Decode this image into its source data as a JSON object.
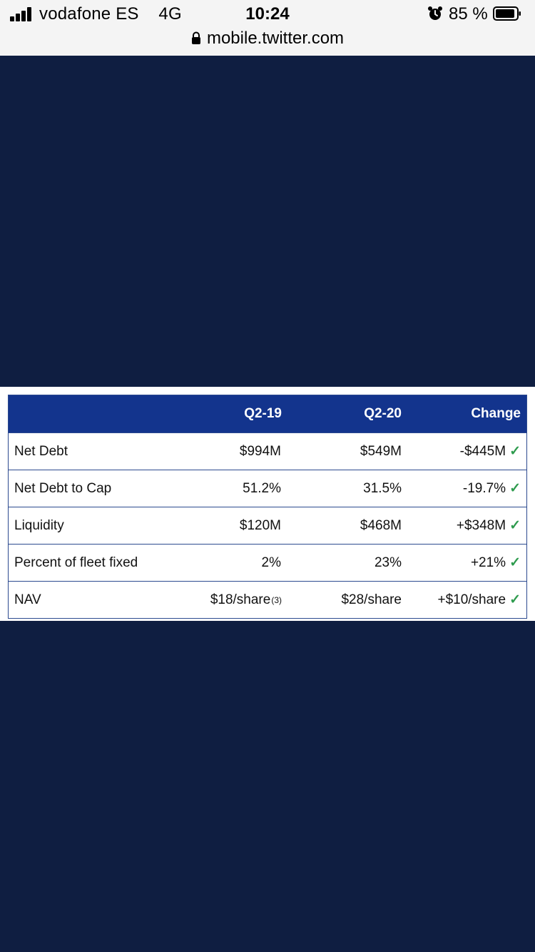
{
  "status_bar": {
    "carrier": "vodafone ES",
    "network": "4G",
    "time": "10:24",
    "battery_percent": "85 %",
    "url": "mobile.twitter.com"
  },
  "table": {
    "headers": [
      "",
      "Q2-19",
      "Q2-20",
      "Change"
    ],
    "rows": [
      {
        "label": "Net Debt",
        "q219": "$994M",
        "q219_note": "",
        "q220": "$549M",
        "change": "-$445M"
      },
      {
        "label": "Net Debt to Cap",
        "q219": "51.2%",
        "q219_note": "",
        "q220": "31.5%",
        "change": "-19.7%"
      },
      {
        "label": "Liquidity",
        "q219": "$120M",
        "q219_note": "",
        "q220": "$468M",
        "change": "+$348M"
      },
      {
        "label": "Percent of fleet fixed",
        "q219": "2%",
        "q219_note": "",
        "q220": "23%",
        "change": "+21%"
      },
      {
        "label": "NAV",
        "q219": "$18/share",
        "q219_note": "(3)",
        "q220": "$28/share",
        "change": "+$10/share"
      }
    ],
    "check_glyph": "✓"
  },
  "colors": {
    "page_background": "#0f1e41",
    "table_header": "#13348d",
    "check": "#2e9b4e"
  },
  "icons": [
    "signal-bars-icon",
    "alarm-clock-icon",
    "battery-icon",
    "lock-icon",
    "checkmark-icon"
  ]
}
